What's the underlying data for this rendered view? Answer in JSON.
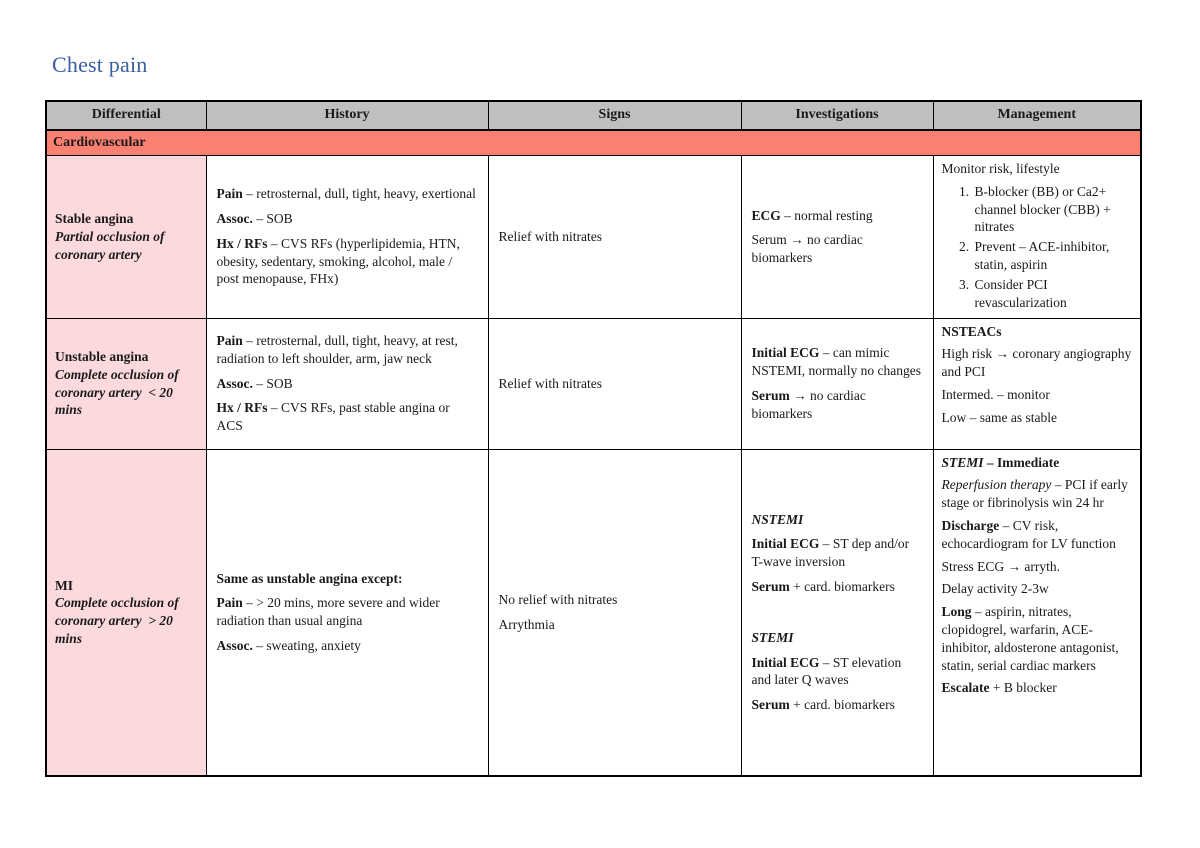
{
  "page": {
    "title": "Chest pain"
  },
  "colors": {
    "title_blue": "#3a5ea0",
    "header_gray": "#bfbfbf",
    "section_salmon": "#fa8072",
    "differential_pink": "#fbd9dd",
    "border_black": "#000000"
  },
  "table": {
    "headers": [
      "Differential",
      "History",
      "Signs",
      "Investigations",
      "Management"
    ],
    "section": "Cardiovascular",
    "rows": [
      {
        "name": "stable-angina",
        "differential": [
          {
            "runs": [
              {
                "t": "Stable angina",
                "b": true
              }
            ]
          },
          {
            "runs": [
              {
                "t": "Partial occlusion of coronary artery",
                "b": true,
                "i": true
              }
            ]
          }
        ],
        "history": [
          {
            "runs": [
              {
                "t": "Pain",
                "b": true
              },
              {
                "t": " – retrosternal, dull, tight, heavy, exertional"
              }
            ]
          },
          {
            "runs": [
              {
                "t": "Assoc.",
                "b": true
              },
              {
                "t": " – SOB"
              }
            ]
          },
          {
            "runs": [
              {
                "t": "Hx / RFs",
                "b": true
              },
              {
                "t": " – CVS RFs (hyperlipidemia, HTN, obesity, sedentary, smoking, alcohol, male / post menopause, FHx)"
              }
            ]
          }
        ],
        "signs": [
          {
            "runs": [
              {
                "t": "Relief with nitrates"
              }
            ]
          }
        ],
        "investigations": [
          {
            "runs": [
              {
                "t": "ECG",
                "b": true
              },
              {
                "t": " – normal resting"
              }
            ]
          },
          {
            "runs": [
              {
                "t": "Serum → no cardiac biomarkers"
              }
            ]
          }
        ],
        "management": [
          {
            "runs": [
              {
                "t": "Monitor risk, lifestyle"
              }
            ]
          },
          {
            "list": [
              [
                {
                  "t": "B-blocker (BB) or Ca2+ channel blocker (CBB) + nitrates"
                }
              ],
              [
                {
                  "t": "Prevent – ACE-inhibitor, statin, aspirin"
                }
              ],
              [
                {
                  "t": "Consider PCI revascularization"
                }
              ]
            ]
          }
        ]
      },
      {
        "name": "unstable-angina",
        "differential": [
          {
            "runs": [
              {
                "t": "Unstable angina",
                "b": true
              }
            ]
          },
          {
            "runs": [
              {
                "t": "Complete occlusion of coronary artery  < 20 mins",
                "b": true,
                "i": true
              }
            ]
          }
        ],
        "history": [
          {
            "runs": [
              {
                "t": "Pain",
                "b": true
              },
              {
                "t": " – retrosternal, dull, tight, heavy, at rest, radiation to left shoulder, arm, jaw neck"
              }
            ]
          },
          {
            "runs": [
              {
                "t": "Assoc.",
                "b": true
              },
              {
                "t": " – SOB"
              }
            ]
          },
          {
            "runs": [
              {
                "t": "Hx / RFs",
                "b": true
              },
              {
                "t": " – CVS RFs, past stable angina or ACS"
              }
            ]
          }
        ],
        "signs": [
          {
            "runs": [
              {
                "t": "Relief with nitrates"
              }
            ]
          }
        ],
        "investigations": [
          {
            "runs": [
              {
                "t": "Initial ECG",
                "b": true
              },
              {
                "t": " – can mimic NSTEMI, normally no changes"
              }
            ]
          },
          {
            "runs": [
              {
                "t": "Serum",
                "b": true
              },
              {
                "t": " → no cardiac biomarkers"
              }
            ]
          }
        ],
        "management": [
          {
            "runs": [
              {
                "t": "NSTEACs",
                "b": true
              }
            ]
          },
          {
            "runs": [
              {
                "t": "High risk → coronary angiography and PCI"
              }
            ]
          },
          {
            "runs": [
              {
                "t": "Intermed. – monitor"
              }
            ]
          },
          {
            "runs": [
              {
                "t": "Low – same as stable"
              }
            ]
          }
        ]
      },
      {
        "name": "mi",
        "differential": [
          {
            "runs": [
              {
                "t": "MI",
                "b": true
              }
            ]
          },
          {
            "runs": [
              {
                "t": "Complete occlusion of coronary artery  > 20 mins",
                "b": true,
                "i": true
              }
            ]
          }
        ],
        "history": [
          {
            "runs": [
              {
                "t": "Same as unstable angina except:",
                "b": true
              }
            ]
          },
          {
            "runs": [
              {
                "t": "Pain",
                "b": true
              },
              {
                "t": " – > 20 mins, more severe and wider radiation than usual angina"
              }
            ]
          },
          {
            "runs": [
              {
                "t": "Assoc.",
                "b": true
              },
              {
                "t": " – sweating, anxiety"
              }
            ]
          }
        ],
        "signs": [
          {
            "runs": [
              {
                "t": "No relief with nitrates"
              }
            ]
          },
          {
            "runs": [
              {
                "t": "Arrythmia"
              }
            ]
          }
        ],
        "investigations": [
          {
            "runs": [
              {
                "t": "NSTEMI",
                "b": true,
                "i": true
              }
            ]
          },
          {
            "runs": [
              {
                "t": "Initial ECG",
                "b": true
              },
              {
                "t": " – ST dep and/or T-wave inversion"
              }
            ]
          },
          {
            "runs": [
              {
                "t": "Serum",
                "b": true
              },
              {
                "t": " + card. biomarkers"
              }
            ]
          },
          {
            "space": true
          },
          {
            "runs": [
              {
                "t": "STEMI",
                "b": true,
                "i": true
              }
            ]
          },
          {
            "runs": [
              {
                "t": "Initial ECG",
                "b": true
              },
              {
                "t": " – ST elevation and later Q waves"
              }
            ]
          },
          {
            "runs": [
              {
                "t": "Serum",
                "b": true
              },
              {
                "t": " + card. biomarkers"
              }
            ]
          }
        ],
        "management": [
          {
            "runs": [
              {
                "t": "STEMI",
                "b": true,
                "i": true
              },
              {
                "t": " – Immediate",
                "b": true
              }
            ]
          },
          {
            "runs": [
              {
                "t": "Reperfusion therapy",
                "i": true
              },
              {
                "t": " – PCI if early stage or fibrinolysis win 24 hr"
              }
            ]
          },
          {
            "runs": [
              {
                "t": "Discharge",
                "b": true
              },
              {
                "t": " – CV risk, echocardiogram for LV function"
              }
            ]
          },
          {
            "runs": [
              {
                "t": "Stress ECG → arryth."
              }
            ]
          },
          {
            "runs": [
              {
                "t": "Delay activity 2-3w"
              }
            ]
          },
          {
            "runs": [
              {
                "t": "Long",
                "b": true
              },
              {
                "t": " – aspirin, nitrates, clopidogrel, warfarin, ACE-inhibitor, aldosterone antagonist, statin, serial cardiac markers"
              }
            ]
          },
          {
            "runs": [
              {
                "t": "Escalate",
                "b": true
              },
              {
                "t": " + B blocker"
              }
            ]
          }
        ]
      }
    ]
  }
}
